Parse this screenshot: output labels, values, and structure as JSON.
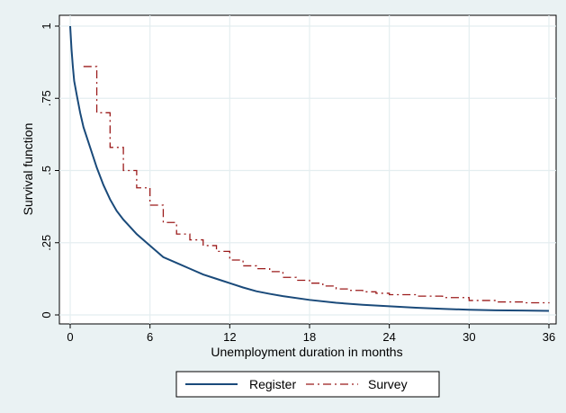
{
  "chart_data": {
    "type": "line",
    "xlabel": "Unemployment duration in months",
    "ylabel": "Survival function",
    "xlim": [
      0,
      36
    ],
    "ylim": [
      0,
      1
    ],
    "xticks": [
      0,
      6,
      12,
      18,
      24,
      30,
      36
    ],
    "xtick_labels": [
      "0",
      "6",
      "12",
      "18",
      "24",
      "30",
      "36"
    ],
    "yticks": [
      0,
      0.25,
      0.5,
      0.75,
      1
    ],
    "ytick_labels": [
      "0",
      ".25",
      ".5",
      ".75",
      "1"
    ],
    "grid": true,
    "legend_position": "bottom",
    "series": [
      {
        "name": "Register",
        "color": "#1a4a7a",
        "style": "solid",
        "step": false,
        "x": [
          0,
          0.1,
          0.2,
          0.3,
          0.5,
          0.75,
          1,
          1.5,
          2,
          2.5,
          3,
          3.5,
          4,
          5,
          6,
          6.5,
          7,
          8,
          9,
          10,
          11,
          12,
          13,
          14,
          15,
          16,
          18,
          20,
          22,
          24,
          26,
          28,
          30,
          32,
          34,
          36
        ],
        "y": [
          1.0,
          0.92,
          0.86,
          0.81,
          0.76,
          0.7,
          0.65,
          0.58,
          0.51,
          0.45,
          0.4,
          0.36,
          0.33,
          0.28,
          0.24,
          0.22,
          0.2,
          0.18,
          0.16,
          0.14,
          0.125,
          0.11,
          0.095,
          0.082,
          0.073,
          0.065,
          0.052,
          0.042,
          0.035,
          0.03,
          0.025,
          0.021,
          0.018,
          0.016,
          0.015,
          0.014
        ]
      },
      {
        "name": "Survey",
        "color": "#9b1b1b",
        "style": "dashdot",
        "step": true,
        "x": [
          1,
          2,
          3,
          4,
          5,
          6,
          7,
          8,
          9,
          10,
          11,
          12,
          13,
          14,
          15,
          16,
          17,
          18,
          19,
          20,
          21,
          22,
          23,
          24,
          26,
          28,
          30,
          32,
          34,
          36
        ],
        "y": [
          0.86,
          0.7,
          0.58,
          0.5,
          0.44,
          0.38,
          0.32,
          0.28,
          0.26,
          0.24,
          0.22,
          0.19,
          0.17,
          0.16,
          0.15,
          0.13,
          0.12,
          0.11,
          0.1,
          0.09,
          0.085,
          0.08,
          0.075,
          0.07,
          0.065,
          0.06,
          0.05,
          0.045,
          0.042,
          0.04
        ]
      }
    ]
  }
}
